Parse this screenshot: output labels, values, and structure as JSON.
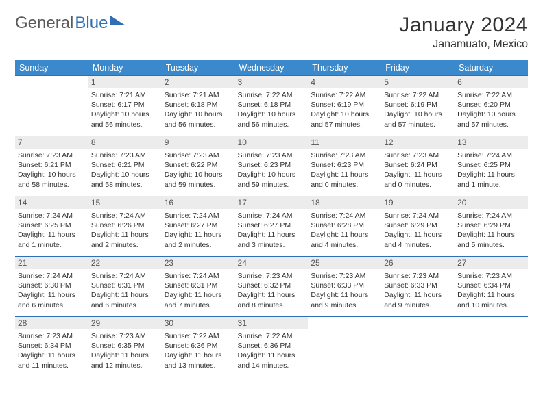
{
  "logo": {
    "part1": "General",
    "part2": "Blue"
  },
  "title": "January 2024",
  "location": "Janamuato, Mexico",
  "weekdays": [
    "Sunday",
    "Monday",
    "Tuesday",
    "Wednesday",
    "Thursday",
    "Friday",
    "Saturday"
  ],
  "colors": {
    "header_bg": "#3a89cc",
    "accent": "#2e6fb5",
    "daynum_bg": "#ececec",
    "text": "#333333"
  },
  "layout": {
    "start_weekday": 1,
    "days_in_month": 31,
    "cols": 7
  },
  "days": [
    {
      "n": 1,
      "sunrise": "7:21 AM",
      "sunset": "6:17 PM",
      "daylight": "10 hours and 56 minutes."
    },
    {
      "n": 2,
      "sunrise": "7:21 AM",
      "sunset": "6:18 PM",
      "daylight": "10 hours and 56 minutes."
    },
    {
      "n": 3,
      "sunrise": "7:22 AM",
      "sunset": "6:18 PM",
      "daylight": "10 hours and 56 minutes."
    },
    {
      "n": 4,
      "sunrise": "7:22 AM",
      "sunset": "6:19 PM",
      "daylight": "10 hours and 57 minutes."
    },
    {
      "n": 5,
      "sunrise": "7:22 AM",
      "sunset": "6:19 PM",
      "daylight": "10 hours and 57 minutes."
    },
    {
      "n": 6,
      "sunrise": "7:22 AM",
      "sunset": "6:20 PM",
      "daylight": "10 hours and 57 minutes."
    },
    {
      "n": 7,
      "sunrise": "7:23 AM",
      "sunset": "6:21 PM",
      "daylight": "10 hours and 58 minutes."
    },
    {
      "n": 8,
      "sunrise": "7:23 AM",
      "sunset": "6:21 PM",
      "daylight": "10 hours and 58 minutes."
    },
    {
      "n": 9,
      "sunrise": "7:23 AM",
      "sunset": "6:22 PM",
      "daylight": "10 hours and 59 minutes."
    },
    {
      "n": 10,
      "sunrise": "7:23 AM",
      "sunset": "6:23 PM",
      "daylight": "10 hours and 59 minutes."
    },
    {
      "n": 11,
      "sunrise": "7:23 AM",
      "sunset": "6:23 PM",
      "daylight": "11 hours and 0 minutes."
    },
    {
      "n": 12,
      "sunrise": "7:23 AM",
      "sunset": "6:24 PM",
      "daylight": "11 hours and 0 minutes."
    },
    {
      "n": 13,
      "sunrise": "7:24 AM",
      "sunset": "6:25 PM",
      "daylight": "11 hours and 1 minute."
    },
    {
      "n": 14,
      "sunrise": "7:24 AM",
      "sunset": "6:25 PM",
      "daylight": "11 hours and 1 minute."
    },
    {
      "n": 15,
      "sunrise": "7:24 AM",
      "sunset": "6:26 PM",
      "daylight": "11 hours and 2 minutes."
    },
    {
      "n": 16,
      "sunrise": "7:24 AM",
      "sunset": "6:27 PM",
      "daylight": "11 hours and 2 minutes."
    },
    {
      "n": 17,
      "sunrise": "7:24 AM",
      "sunset": "6:27 PM",
      "daylight": "11 hours and 3 minutes."
    },
    {
      "n": 18,
      "sunrise": "7:24 AM",
      "sunset": "6:28 PM",
      "daylight": "11 hours and 4 minutes."
    },
    {
      "n": 19,
      "sunrise": "7:24 AM",
      "sunset": "6:29 PM",
      "daylight": "11 hours and 4 minutes."
    },
    {
      "n": 20,
      "sunrise": "7:24 AM",
      "sunset": "6:29 PM",
      "daylight": "11 hours and 5 minutes."
    },
    {
      "n": 21,
      "sunrise": "7:24 AM",
      "sunset": "6:30 PM",
      "daylight": "11 hours and 6 minutes."
    },
    {
      "n": 22,
      "sunrise": "7:24 AM",
      "sunset": "6:31 PM",
      "daylight": "11 hours and 6 minutes."
    },
    {
      "n": 23,
      "sunrise": "7:24 AM",
      "sunset": "6:31 PM",
      "daylight": "11 hours and 7 minutes."
    },
    {
      "n": 24,
      "sunrise": "7:23 AM",
      "sunset": "6:32 PM",
      "daylight": "11 hours and 8 minutes."
    },
    {
      "n": 25,
      "sunrise": "7:23 AM",
      "sunset": "6:33 PM",
      "daylight": "11 hours and 9 minutes."
    },
    {
      "n": 26,
      "sunrise": "7:23 AM",
      "sunset": "6:33 PM",
      "daylight": "11 hours and 9 minutes."
    },
    {
      "n": 27,
      "sunrise": "7:23 AM",
      "sunset": "6:34 PM",
      "daylight": "11 hours and 10 minutes."
    },
    {
      "n": 28,
      "sunrise": "7:23 AM",
      "sunset": "6:34 PM",
      "daylight": "11 hours and 11 minutes."
    },
    {
      "n": 29,
      "sunrise": "7:23 AM",
      "sunset": "6:35 PM",
      "daylight": "11 hours and 12 minutes."
    },
    {
      "n": 30,
      "sunrise": "7:22 AM",
      "sunset": "6:36 PM",
      "daylight": "11 hours and 13 minutes."
    },
    {
      "n": 31,
      "sunrise": "7:22 AM",
      "sunset": "6:36 PM",
      "daylight": "11 hours and 14 minutes."
    }
  ],
  "labels": {
    "sunrise": "Sunrise:",
    "sunset": "Sunset:",
    "daylight": "Daylight:"
  }
}
